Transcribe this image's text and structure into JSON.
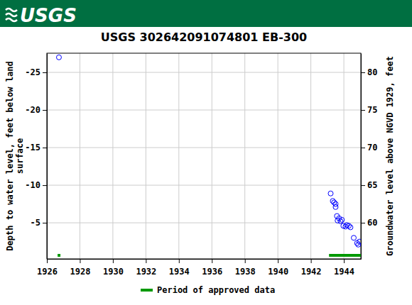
{
  "header": {
    "logo": "USGS"
  },
  "chart_data": {
    "type": "scatter",
    "title": "USGS 302642091074801 EB-300",
    "y_label": [
      "Depth to water level, feet below land",
      "surface"
    ],
    "y2_label": "Groundwater level above NGVD 1929, feet",
    "x": [
      1926.73,
      1943.2,
      1943.33,
      1943.41,
      1943.5,
      1943.5,
      1943.58,
      1943.62,
      1943.71,
      1943.8,
      1943.88,
      1943.97,
      1944.1,
      1944.18,
      1944.3,
      1944.4,
      1944.6,
      1944.8,
      1944.87,
      1944.95
    ],
    "series": [
      {
        "color": "#0000ff",
        "marker": "circle-open",
        "values": [
          -27.0,
          -8.9,
          -7.9,
          -7.7,
          -7.5,
          -7.1,
          -5.9,
          -5.3,
          -5.6,
          -5.2,
          -5.4,
          -4.6,
          -4.5,
          -4.7,
          -4.6,
          -4.4,
          -3.0,
          -2.3,
          -2.1,
          -2.5
        ]
      }
    ],
    "xlim": [
      1926,
      1945.03
    ],
    "xticks": [
      1926,
      1928,
      1930,
      1932,
      1934,
      1936,
      1938,
      1940,
      1942,
      1944
    ],
    "ylim": [
      -0.2,
      -27.55
    ],
    "yticks": [
      -25,
      -20,
      -15,
      -10,
      -5
    ],
    "y2lim": [
      55.2,
      82.55
    ],
    "y2ticks": [
      60,
      65,
      70,
      75,
      80
    ],
    "grid": true,
    "approved_periods": [
      [
        1926.65,
        1926.82
      ],
      [
        1943.1,
        1945.03
      ]
    ],
    "approved_color": "#009900",
    "approved_label": "Period of approved data",
    "legend": "bottom"
  }
}
